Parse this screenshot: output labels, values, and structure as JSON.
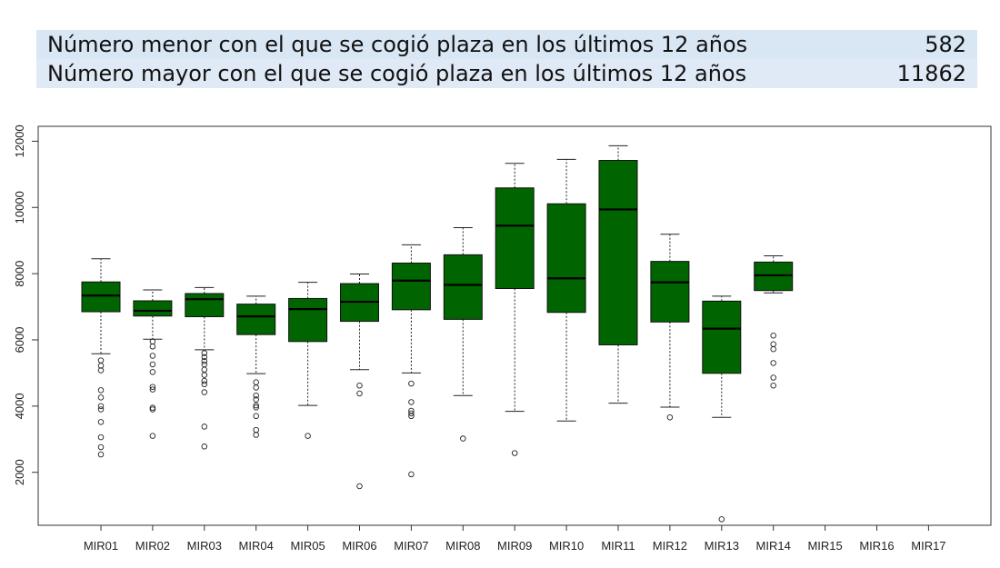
{
  "summary": {
    "rows": [
      {
        "label": "Número menor con el que se cogió plaza en los últimos 12 años",
        "value": "582"
      },
      {
        "label": "Número mayor con el que se cogió plaza en los últimos 12 años",
        "value": "11862"
      }
    ]
  },
  "chart_data": {
    "type": "boxplot",
    "categories": [
      "MIR01",
      "MIR02",
      "MIR03",
      "MIR04",
      "MIR05",
      "MIR06",
      "MIR07",
      "MIR08",
      "MIR09",
      "MIR10",
      "MIR11",
      "MIR12",
      "MIR13",
      "MIR14",
      "MIR15",
      "MIR16",
      "MIR17"
    ],
    "yticks": [
      2000,
      4000,
      6000,
      8000,
      10000,
      12000
    ],
    "ylim": [
      400,
      12450
    ],
    "box_color": "#006400",
    "boxes": [
      {
        "category": "MIR01",
        "whisker_low": 5580,
        "q1": 6850,
        "median": 7340,
        "q3": 7750,
        "whisker_high": 8450,
        "outliers": [
          5380,
          5220,
          5080,
          4480,
          4260,
          4000,
          3900,
          3520,
          3060,
          2760,
          2540
        ]
      },
      {
        "category": "MIR02",
        "whisker_low": 6020,
        "q1": 6720,
        "median": 6880,
        "q3": 7180,
        "whisker_high": 7510,
        "outliers": [
          5950,
          5800,
          5520,
          5260,
          5030,
          4580,
          4500,
          3950,
          3900,
          3100
        ]
      },
      {
        "category": "MIR03",
        "whisker_low": 5700,
        "q1": 6700,
        "median": 7230,
        "q3": 7400,
        "whisker_high": 7580,
        "outliers": [
          5600,
          5480,
          5360,
          5260,
          5100,
          4940,
          4760,
          4660,
          4420,
          3380,
          2780
        ]
      },
      {
        "category": "MIR04",
        "whisker_low": 4980,
        "q1": 6160,
        "median": 6710,
        "q3": 7080,
        "whisker_high": 7320,
        "outliers": [
          4720,
          4560,
          4320,
          4200,
          4020,
          3960,
          3700,
          3280,
          3130
        ]
      },
      {
        "category": "MIR05",
        "whisker_low": 4020,
        "q1": 5950,
        "median": 6930,
        "q3": 7250,
        "whisker_high": 7740,
        "outliers": [
          3100
        ]
      },
      {
        "category": "MIR06",
        "whisker_low": 5100,
        "q1": 6560,
        "median": 7150,
        "q3": 7700,
        "whisker_high": 7990,
        "outliers": [
          4620,
          4380,
          1580
        ]
      },
      {
        "category": "MIR07",
        "whisker_low": 5000,
        "q1": 6910,
        "median": 7790,
        "q3": 8320,
        "whisker_high": 8870,
        "outliers": [
          4680,
          4120,
          3860,
          3780,
          3700,
          1940
        ]
      },
      {
        "category": "MIR08",
        "whisker_low": 4320,
        "q1": 6620,
        "median": 7660,
        "q3": 8570,
        "whisker_high": 9390,
        "outliers": [
          3020
        ]
      },
      {
        "category": "MIR09",
        "whisker_low": 3840,
        "q1": 7550,
        "median": 9450,
        "q3": 10590,
        "whisker_high": 11330,
        "outliers": [
          2580
        ]
      },
      {
        "category": "MIR10",
        "whisker_low": 3550,
        "q1": 6830,
        "median": 7860,
        "q3": 10110,
        "whisker_high": 11450,
        "outliers": []
      },
      {
        "category": "MIR11",
        "whisker_low": 4090,
        "q1": 5850,
        "median": 9940,
        "q3": 11420,
        "whisker_high": 11862,
        "outliers": []
      },
      {
        "category": "MIR12",
        "whisker_low": 3970,
        "q1": 6540,
        "median": 7740,
        "q3": 8370,
        "whisker_high": 9190,
        "outliers": [
          3660
        ]
      },
      {
        "category": "MIR13",
        "whisker_low": 3660,
        "q1": 4990,
        "median": 6340,
        "q3": 7170,
        "whisker_high": 7320,
        "outliers": [
          582
        ]
      },
      {
        "category": "MIR14",
        "whisker_low": 7420,
        "q1": 7490,
        "median": 7950,
        "q3": 8350,
        "whisker_high": 8540,
        "outliers": [
          6130,
          5870,
          5720,
          5300,
          4860,
          4620
        ]
      }
    ]
  }
}
